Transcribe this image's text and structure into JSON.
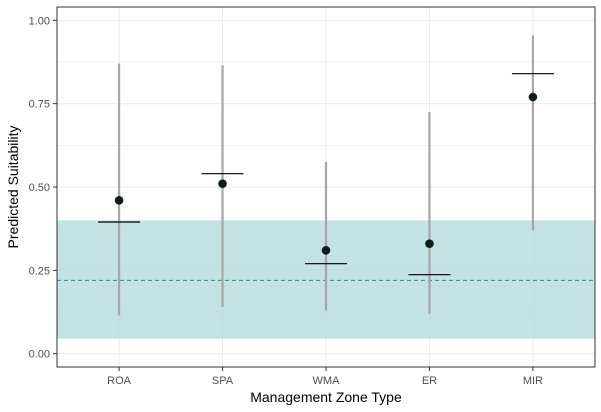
{
  "chart_data": {
    "type": "scatter",
    "title": "",
    "xlabel": "Management Zone Type",
    "ylabel": "Predicted Suitability",
    "categories": [
      "ROA",
      "SPA",
      "WMA",
      "ER",
      "MIR"
    ],
    "ylim": [
      -0.04,
      1.04
    ],
    "y_ticks": [
      0.0,
      0.25,
      0.5,
      0.75,
      1.0
    ],
    "y_tick_labels": [
      "0.00",
      "0.25",
      "0.50",
      "0.75",
      "1.00"
    ],
    "grid": true,
    "series": [
      {
        "kind": "point",
        "values": [
          0.46,
          0.51,
          0.31,
          0.33,
          0.77
        ]
      },
      {
        "kind": "interval",
        "lower": [
          0.115,
          0.14,
          0.13,
          0.12,
          0.37
        ],
        "upper": [
          0.87,
          0.865,
          0.575,
          0.725,
          0.955
        ]
      },
      {
        "kind": "segment",
        "values": [
          0.395,
          0.54,
          0.27,
          0.237,
          0.84
        ]
      }
    ],
    "reference_band": {
      "lower": 0.045,
      "upper": 0.4
    },
    "reference_line": 0.22,
    "colors": {
      "point": "#111c1c",
      "interval": "#a6a6a6",
      "segment": "#000000",
      "band": "#b3dbdd",
      "band_opacity": 0.8,
      "reference_line": "#2a8a91",
      "grid": "#ebebeb",
      "panel_border": "#333333"
    }
  }
}
